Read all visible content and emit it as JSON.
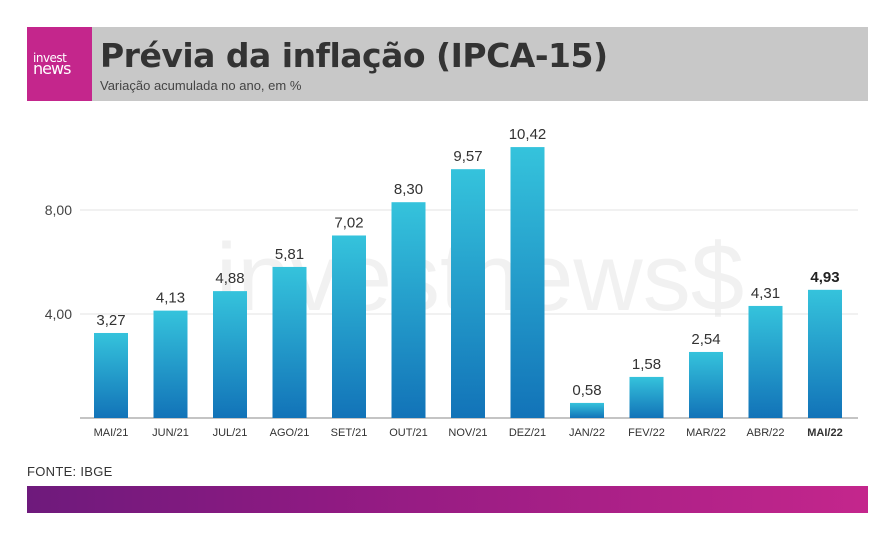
{
  "brand": {
    "logo_line1": "invest",
    "logo_line2": "news",
    "watermark": "investnews$",
    "header_bg": "#c8c8c8",
    "logo_bg": "#c4268c"
  },
  "header": {
    "title": "Prévia da inflação (IPCA-15)",
    "subtitle": "Variação acumulada no ano, em %"
  },
  "source": "FONTE: IBGE",
  "chart_data": {
    "type": "bar",
    "categories": [
      "MAI/21",
      "JUN/21",
      "JUL/21",
      "AGO/21",
      "SET/21",
      "OUT/21",
      "NOV/21",
      "DEZ/21",
      "JAN/22",
      "FEV/22",
      "MAR/22",
      "ABR/22",
      "MAI/22"
    ],
    "values": [
      3.27,
      4.13,
      4.88,
      5.81,
      7.02,
      8.3,
      9.57,
      10.42,
      0.58,
      1.58,
      2.54,
      4.31,
      4.93
    ],
    "value_labels": [
      "3,27",
      "4,13",
      "4,88",
      "5,81",
      "7,02",
      "8,30",
      "9,57",
      "10,42",
      "0,58",
      "1,58",
      "2,54",
      "4,31",
      "4,93"
    ],
    "highlight_index": 12,
    "yticks": [
      4,
      8
    ],
    "ytick_labels": [
      "4,00",
      "8,00"
    ],
    "ylim": [
      0,
      11
    ],
    "grid": true,
    "bar_color_top": "#35c3dc",
    "bar_color_bottom": "#1273b8"
  }
}
